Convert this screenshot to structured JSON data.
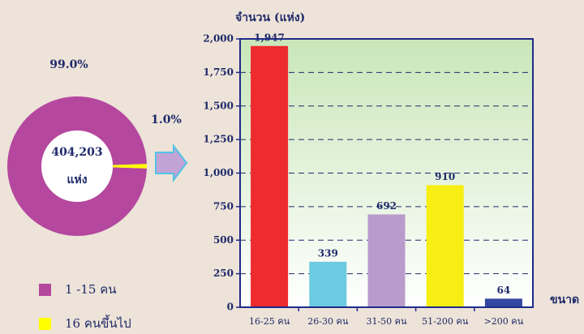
{
  "chart_data": [
    {
      "type": "donut",
      "categories": [
        "1 -15 คน",
        "16 คนขึ้นไป"
      ],
      "values": [
        99.0,
        1.0
      ],
      "value_labels": [
        "99.0%",
        "1.0%"
      ],
      "colors": [
        "#b5479f",
        "#ffff00"
      ],
      "center_label": "404,203",
      "center_unit": "แห่ง"
    },
    {
      "type": "bar",
      "y_label": "จำนวน (แห่ง)",
      "x_label": "ขนาด",
      "categories": [
        "16-25 คน",
        "26-30 คน",
        "31-50 คน",
        "51-200 คน",
        ">200 คน"
      ],
      "values": [
        1947,
        339,
        692,
        910,
        64
      ],
      "value_labels": [
        "1,947",
        "339",
        "692",
        "910",
        "64"
      ],
      "colors": [
        "#ee2b2e",
        "#6ccbe0",
        "#b99ccb",
        "#f7ee14",
        "#3346a0"
      ],
      "ylim": [
        0,
        2000
      ],
      "yticks": [
        0,
        250,
        500,
        750,
        {
          "value": 1000,
          "label": "1,000"
        },
        {
          "value": 1250,
          "label": "1,250"
        },
        {
          "value": 1500,
          "label": "1,500"
        },
        {
          "value": 1750,
          "label": "1,750"
        },
        {
          "value": 2000,
          "label": "2,000"
        }
      ],
      "grid": true
    }
  ]
}
